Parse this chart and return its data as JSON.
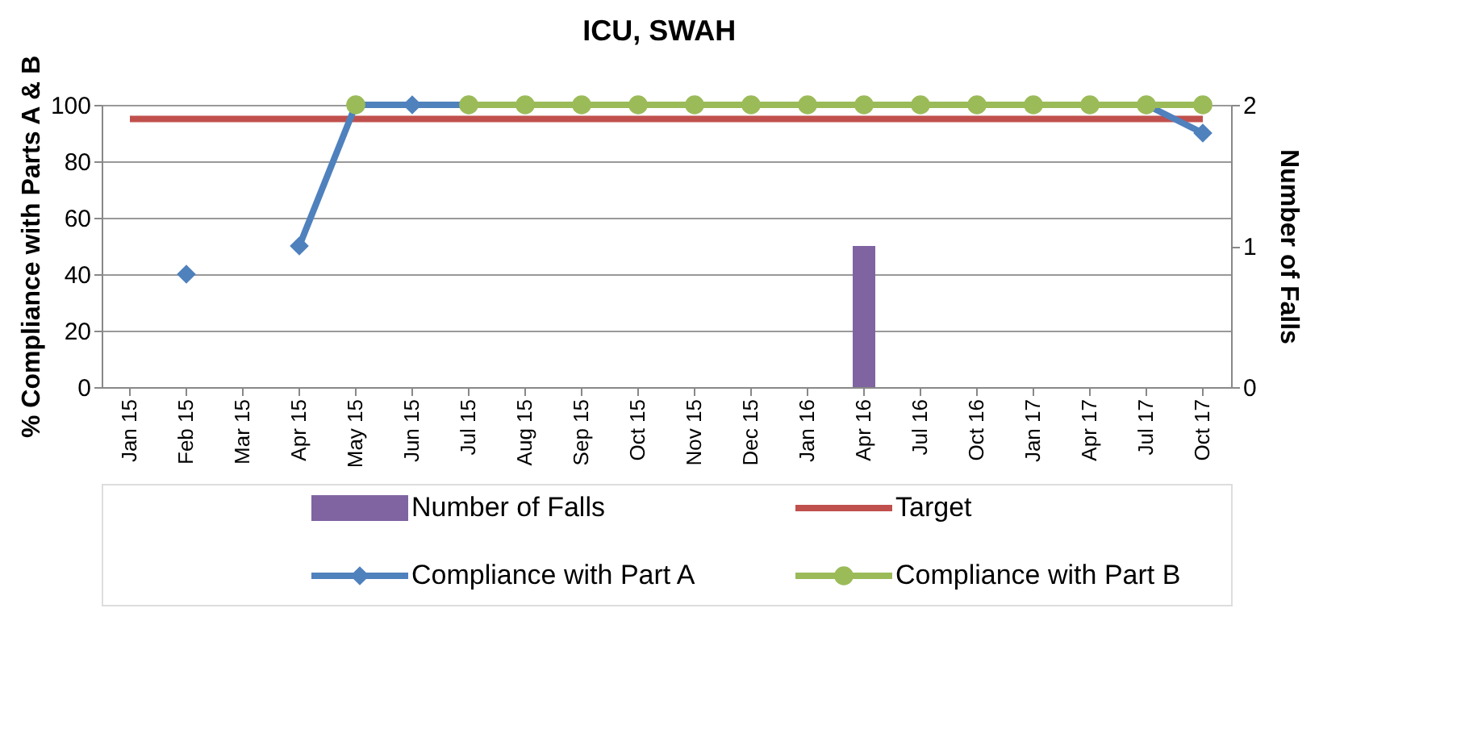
{
  "chart_data": {
    "type": "line",
    "title": "ICU, SWAH",
    "categories": [
      "Jan 15",
      "Feb 15",
      "Mar 15",
      "Apr 15",
      "May 15",
      "Jun 15",
      "Jul 15",
      "Aug 15",
      "Sep 15",
      "Oct 15",
      "Nov 15",
      "Dec 15",
      "Jan 16",
      "Apr 16",
      "Jul 16",
      "Oct 16",
      "Jan 17",
      "Apr 17",
      "Jul 17",
      "Oct 17"
    ],
    "ylabel": "% Compliance with Parts A & B",
    "y2label": "Number of Falls",
    "ylim": [
      0,
      100
    ],
    "yticks": [
      0,
      20,
      40,
      60,
      80,
      100
    ],
    "y2lim": [
      0,
      2
    ],
    "y2ticks": [
      0,
      1,
      2
    ],
    "grid": "y",
    "legend": "bottom",
    "series": [
      {
        "name": "Number of Falls",
        "type": "bar",
        "axis": "y2",
        "color": "#8064a2",
        "values": [
          0,
          0,
          0,
          0,
          0,
          0,
          0,
          0,
          0,
          0,
          0,
          0,
          0,
          1,
          0,
          0,
          0,
          0,
          0,
          0
        ]
      },
      {
        "name": "Target",
        "color": "#c0504d",
        "marker": "none",
        "values": [
          95,
          95,
          95,
          95,
          95,
          95,
          95,
          95,
          95,
          95,
          95,
          95,
          95,
          95,
          95,
          95,
          95,
          95,
          95,
          95
        ]
      },
      {
        "name": "Compliance with Part A",
        "color": "#4f81bd",
        "marker": "diamond",
        "values": [
          null,
          40,
          null,
          50,
          100,
          100,
          100,
          null,
          null,
          null,
          null,
          null,
          null,
          null,
          null,
          null,
          null,
          null,
          100,
          90
        ]
      },
      {
        "name": "Compliance with Part B",
        "color": "#9bbb59",
        "marker": "circle",
        "values": [
          null,
          null,
          null,
          null,
          100,
          null,
          100,
          100,
          100,
          100,
          100,
          100,
          100,
          100,
          100,
          100,
          100,
          100,
          100,
          100
        ]
      }
    ]
  }
}
